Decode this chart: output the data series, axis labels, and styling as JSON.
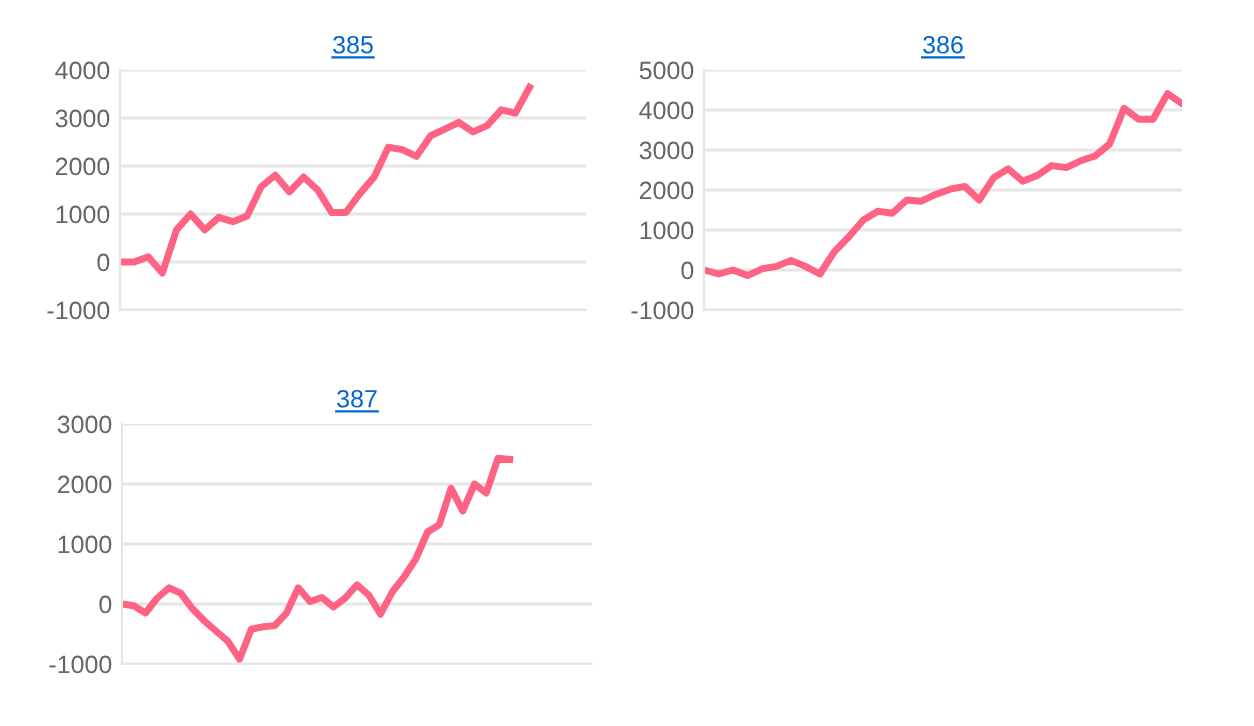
{
  "chart_data": [
    {
      "type": "line",
      "title": "385",
      "categories": [
        null,
        null,
        null,
        null,
        null,
        null,
        null,
        null,
        null,
        null,
        null,
        null,
        null,
        null,
        null,
        null,
        null,
        null,
        null,
        null,
        null,
        null,
        null,
        null,
        null,
        null,
        null,
        null,
        null,
        null,
        null,
        null,
        null,
        null
      ],
      "series": [
        {
          "color": "#ff6384",
          "values": [
            0,
            0,
            110,
            -230,
            670,
            1000,
            670,
            930,
            840,
            960,
            1570,
            1810,
            1460,
            1770,
            1500,
            1030,
            1030,
            1430,
            1770,
            2390,
            2340,
            2200,
            2630,
            2770,
            2910,
            2710,
            2840,
            3170,
            3100,
            3640,
            null,
            null,
            null,
            null
          ]
        }
      ],
      "ylim": [
        -1000,
        4000
      ],
      "yticks": [
        -1000,
        0,
        1000,
        2000,
        3000,
        4000
      ],
      "grid": "y",
      "tick_labels": "y",
      "marker": "none",
      "line_style": "solid"
    },
    {
      "type": "line",
      "title": "386",
      "categories": [
        null,
        null,
        null,
        null,
        null,
        null,
        null,
        null,
        null,
        null,
        null,
        null,
        null,
        null,
        null,
        null,
        null,
        null,
        null,
        null,
        null,
        null,
        null,
        null,
        null,
        null,
        null,
        null,
        null,
        null,
        null,
        null,
        null,
        null
      ],
      "series": [
        {
          "color": "#ff6384",
          "values": [
            0,
            -100,
            0,
            -140,
            30,
            90,
            240,
            90,
            -100,
            460,
            830,
            1250,
            1470,
            1420,
            1750,
            1720,
            1890,
            2020,
            2090,
            1750,
            2310,
            2530,
            2220,
            2360,
            2610,
            2560,
            2730,
            2850,
            3150,
            4040,
            3770,
            3770,
            4410,
            4160
          ]
        }
      ],
      "ylim": [
        -1000,
        5000
      ],
      "yticks": [
        -1000,
        0,
        1000,
        2000,
        3000,
        4000,
        5000
      ],
      "grid": "y",
      "tick_labels": "y",
      "marker": "none",
      "line_style": "solid"
    },
    {
      "type": "line",
      "title": "387",
      "categories": [
        null,
        null,
        null,
        null,
        null,
        null,
        null,
        null,
        null,
        null,
        null,
        null,
        null,
        null,
        null,
        null,
        null,
        null,
        null,
        null,
        null,
        null,
        null,
        null,
        null,
        null,
        null,
        null,
        null,
        null,
        null,
        null,
        null,
        null,
        null,
        null,
        null,
        null,
        null,
        null,
        null
      ],
      "series": [
        {
          "color": "#ff6384",
          "values": [
            0,
            -30,
            -150,
            100,
            270,
            180,
            -80,
            -280,
            -450,
            -620,
            -920,
            -420,
            -380,
            -360,
            -150,
            270,
            40,
            110,
            -50,
            100,
            320,
            150,
            -170,
            200,
            450,
            750,
            1200,
            1320,
            1930,
            1550,
            2000,
            1850,
            2430,
            2410,
            null,
            null,
            null,
            null,
            null,
            null,
            null
          ]
        }
      ],
      "ylim": [
        -1000,
        3000
      ],
      "yticks": [
        -1000,
        0,
        1000,
        2000,
        3000
      ],
      "grid": "y",
      "tick_labels": "y",
      "marker": "none",
      "line_style": "solid"
    }
  ]
}
